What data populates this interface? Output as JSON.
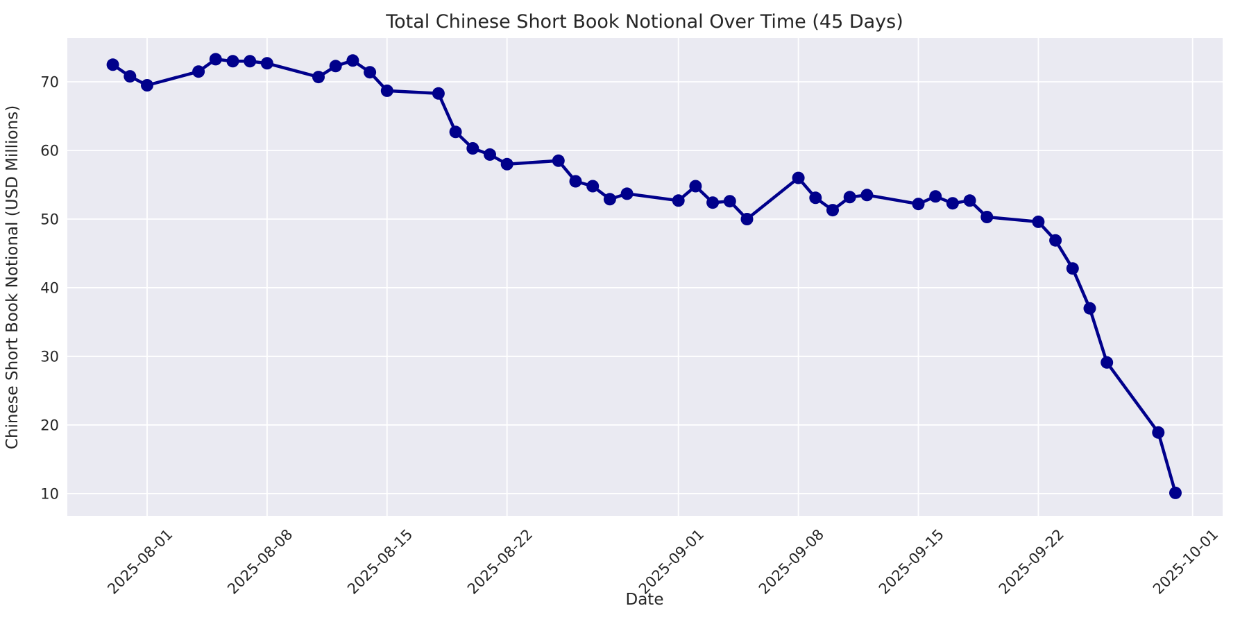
{
  "figure": {
    "title": "Total Chinese Short Book Notional Over Time (45 Days)",
    "xlabel": "Date",
    "ylabel": "Chinese Short Book Notional (USD Millions)"
  },
  "chart_data": {
    "type": "line",
    "title": "Total Chinese Short Book Notional Over Time (45 Days)",
    "xlabel": "Date",
    "ylabel": "Chinese Short Book Notional (USD Millions)",
    "series": [
      {
        "name": "Chinese Short Book Notional (USD Millions)",
        "color": "#00008B",
        "marker": "circle",
        "x": [
          "2025-07-30",
          "2025-07-31",
          "2025-08-01",
          "2025-08-04",
          "2025-08-05",
          "2025-08-06",
          "2025-08-07",
          "2025-08-08",
          "2025-08-11",
          "2025-08-12",
          "2025-08-13",
          "2025-08-14",
          "2025-08-15",
          "2025-08-18",
          "2025-08-19",
          "2025-08-20",
          "2025-08-21",
          "2025-08-22",
          "2025-08-25",
          "2025-08-26",
          "2025-08-27",
          "2025-08-28",
          "2025-08-29",
          "2025-09-01",
          "2025-09-02",
          "2025-09-03",
          "2025-09-04",
          "2025-09-05",
          "2025-09-08",
          "2025-09-09",
          "2025-09-10",
          "2025-09-11",
          "2025-09-12",
          "2025-09-15",
          "2025-09-16",
          "2025-09-17",
          "2025-09-18",
          "2025-09-19",
          "2025-09-22",
          "2025-09-23",
          "2025-09-24",
          "2025-09-25",
          "2025-09-26",
          "2025-09-29",
          "2025-09-30"
        ],
        "values": [
          72.5,
          70.8,
          69.5,
          71.5,
          73.3,
          73.0,
          73.0,
          72.7,
          70.7,
          72.3,
          73.1,
          71.4,
          68.7,
          68.3,
          62.7,
          60.3,
          59.4,
          58.0,
          58.5,
          55.5,
          54.8,
          52.9,
          53.7,
          52.7,
          54.8,
          52.4,
          52.6,
          50.0,
          56.0,
          53.1,
          51.3,
          53.2,
          53.5,
          52.2,
          53.3,
          52.3,
          52.7,
          50.3,
          49.6,
          46.9,
          42.8,
          37.0,
          29.1,
          18.9,
          10.1
        ]
      }
    ],
    "x_tick_labels": [
      "2025-08-01",
      "2025-08-08",
      "2025-08-15",
      "2025-08-22",
      "2025-09-01",
      "2025-09-08",
      "2025-09-15",
      "2025-09-22",
      "2025-10-01"
    ],
    "y_ticks": [
      10,
      20,
      30,
      40,
      50,
      60,
      70
    ],
    "ylim": [
      6.7,
      76.6
    ],
    "xlim": [
      "2025-07-27",
      "2025-10-03"
    ],
    "grid": true,
    "legend": false,
    "tick_rotation_deg": 45,
    "plot_background": "#EAEAF2",
    "grid_color": "#FFFFFF",
    "text_color": "#262626"
  }
}
